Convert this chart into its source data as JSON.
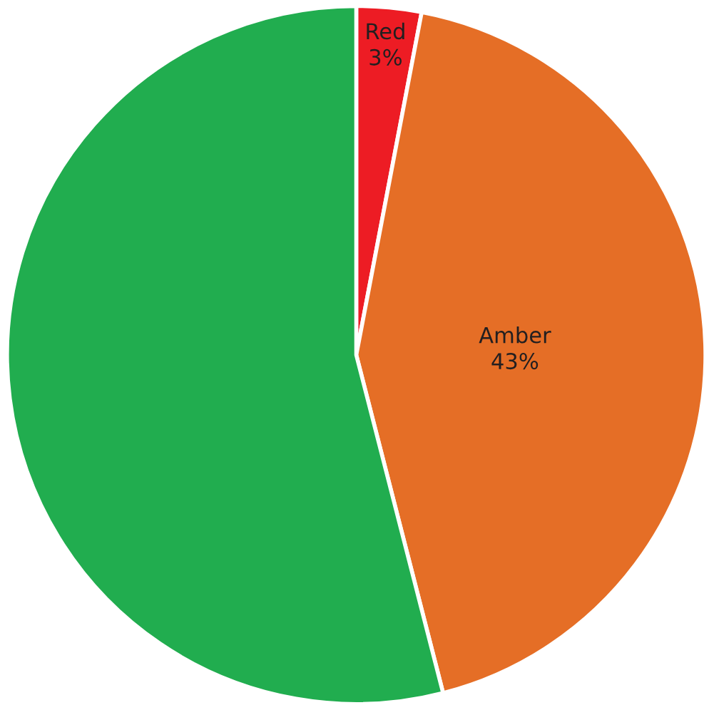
{
  "chart_data": {
    "type": "pie",
    "categories": [
      "Red",
      "Amber",
      null
    ],
    "values": [
      3,
      43,
      54
    ],
    "value_labels": [
      "3%",
      "43%",
      null
    ],
    "colors": [
      "#ed1c24",
      "#e56e26",
      "#21ad4f"
    ]
  }
}
